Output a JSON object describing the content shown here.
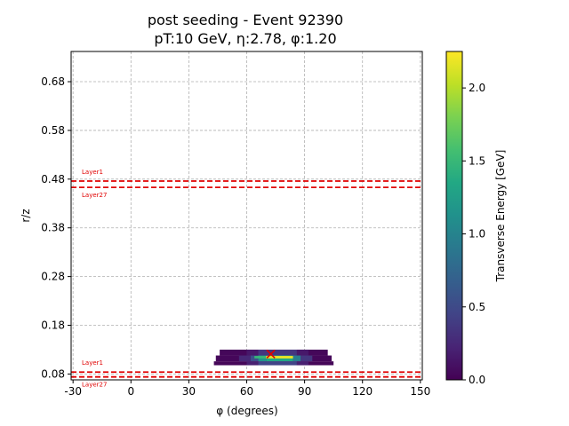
{
  "chart_data": {
    "type": "heatmap",
    "title_line1": "post seeding - Event 92390",
    "title_line2": "pT:10 GeV, η:2.78, φ:1.20",
    "xlabel": "φ (degrees)",
    "ylabel": "r/z",
    "xlim": [
      -31,
      151
    ],
    "ylim": [
      0.068,
      0.742
    ],
    "x_ticks": [
      -30,
      0,
      30,
      60,
      90,
      120,
      150
    ],
    "y_ticks": [
      0.08,
      0.18,
      0.28,
      0.38,
      0.48,
      0.58,
      0.68
    ],
    "y_tick_labels": [
      "0.08",
      "0.18",
      "0.28",
      "0.38",
      "0.48",
      "0.58",
      "0.68"
    ],
    "grid": true,
    "colorbar": {
      "label": "Transverse Energy [GeV]",
      "range": [
        0.0,
        2.25
      ],
      "ticks": [
        0.0,
        0.5,
        1.0,
        1.5,
        2.0
      ],
      "tick_labels": [
        "0.0",
        "0.5",
        "1.0",
        "1.5",
        "2.0"
      ],
      "colormap": "viridis"
    },
    "layer_lines": {
      "color": "#e00000",
      "groups": [
        {
          "upper": 0.476,
          "lower": 0.463,
          "upper_label": "Layer1",
          "lower_label": "Layer27"
        },
        {
          "upper": 0.084,
          "lower": 0.074,
          "upper_label": "Layer1",
          "lower_label": "Layer27"
        }
      ]
    },
    "cells": [
      {
        "x0": 46,
        "x1": 102,
        "y0": 0.118,
        "y1": 0.13,
        "e": 0.04
      },
      {
        "x0": 44,
        "x1": 104,
        "y0": 0.106,
        "y1": 0.118,
        "e": 0.04
      },
      {
        "x0": 43,
        "x1": 105,
        "y0": 0.098,
        "y1": 0.106,
        "e": 0.03
      },
      {
        "x0": 60,
        "x1": 66,
        "y0": 0.118,
        "y1": 0.13,
        "e": 0.15
      },
      {
        "x0": 66,
        "x1": 86,
        "y0": 0.118,
        "y1": 0.13,
        "e": 0.35
      },
      {
        "x0": 86,
        "x1": 92,
        "y0": 0.118,
        "y1": 0.13,
        "e": 0.15
      },
      {
        "x0": 56,
        "x1": 62,
        "y0": 0.106,
        "y1": 0.118,
        "e": 0.25
      },
      {
        "x0": 62,
        "x1": 66,
        "y0": 0.106,
        "y1": 0.118,
        "e": 0.55
      },
      {
        "x0": 66,
        "x1": 70,
        "y0": 0.106,
        "y1": 0.118,
        "e": 1.15
      },
      {
        "x0": 70,
        "x1": 84,
        "y0": 0.106,
        "y1": 0.118,
        "e": 1.35
      },
      {
        "x0": 84,
        "x1": 88,
        "y0": 0.106,
        "y1": 0.118,
        "e": 0.95
      },
      {
        "x0": 88,
        "x1": 94,
        "y0": 0.106,
        "y1": 0.118,
        "e": 0.35
      },
      {
        "x0": 64,
        "x1": 70,
        "y0": 0.112,
        "y1": 0.117,
        "e": 1.5
      },
      {
        "x0": 70,
        "x1": 84,
        "y0": 0.112,
        "y1": 0.117,
        "e": 2.2
      },
      {
        "x0": 60,
        "x1": 66,
        "y0": 0.098,
        "y1": 0.106,
        "e": 0.2
      },
      {
        "x0": 66,
        "x1": 86,
        "y0": 0.098,
        "y1": 0.106,
        "e": 0.45
      },
      {
        "x0": 86,
        "x1": 92,
        "y0": 0.098,
        "y1": 0.106,
        "e": 0.2
      }
    ],
    "marker": {
      "x": 72.5,
      "y": 0.121,
      "symbol": "x",
      "color": "#e00000"
    }
  }
}
